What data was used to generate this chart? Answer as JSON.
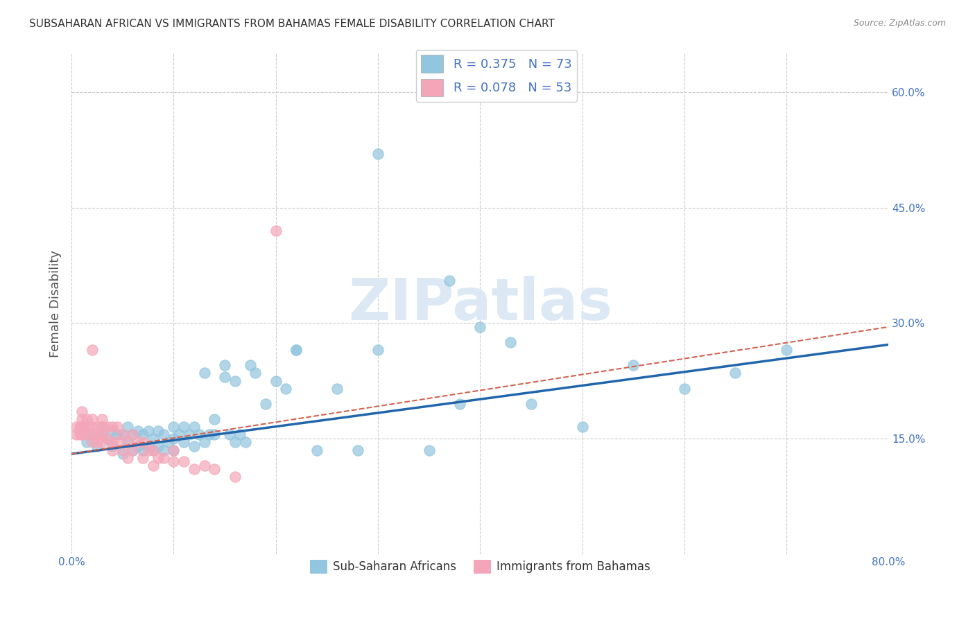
{
  "title": "SUBSAHARAN AFRICAN VS IMMIGRANTS FROM BAHAMAS FEMALE DISABILITY CORRELATION CHART",
  "source": "Source: ZipAtlas.com",
  "ylabel": "Female Disability",
  "xlim": [
    0.0,
    0.8
  ],
  "ylim": [
    0.0,
    0.65
  ],
  "ytick_positions": [
    0.15,
    0.3,
    0.45,
    0.6
  ],
  "ytick_labels": [
    "15.0%",
    "30.0%",
    "45.0%",
    "60.0%"
  ],
  "legend1_label": "R = 0.375   N = 73",
  "legend2_label": "R = 0.078   N = 53",
  "legend_label1": "Sub-Saharan Africans",
  "legend_label2": "Immigrants from Bahamas",
  "blue_color": "#92c5de",
  "pink_color": "#f4a6b8",
  "blue_line_color": "#2166ac",
  "pink_line_color": "#d6604d",
  "blue_scatter_x": [
    0.015,
    0.02,
    0.025,
    0.03,
    0.03,
    0.035,
    0.04,
    0.04,
    0.045,
    0.05,
    0.05,
    0.055,
    0.055,
    0.06,
    0.06,
    0.065,
    0.065,
    0.07,
    0.07,
    0.075,
    0.075,
    0.08,
    0.08,
    0.085,
    0.085,
    0.09,
    0.09,
    0.095,
    0.1,
    0.1,
    0.1,
    0.105,
    0.11,
    0.11,
    0.115,
    0.12,
    0.12,
    0.125,
    0.13,
    0.13,
    0.135,
    0.14,
    0.14,
    0.15,
    0.15,
    0.155,
    0.16,
    0.16,
    0.165,
    0.17,
    0.175,
    0.18,
    0.19,
    0.2,
    0.21,
    0.22,
    0.24,
    0.26,
    0.28,
    0.22,
    0.3,
    0.35,
    0.38,
    0.4,
    0.43,
    0.45,
    0.5,
    0.55,
    0.6,
    0.65,
    0.7,
    0.3,
    0.37
  ],
  "blue_scatter_y": [
    0.145,
    0.155,
    0.14,
    0.155,
    0.165,
    0.15,
    0.14,
    0.16,
    0.155,
    0.13,
    0.155,
    0.145,
    0.165,
    0.135,
    0.155,
    0.14,
    0.16,
    0.135,
    0.155,
    0.14,
    0.16,
    0.135,
    0.15,
    0.14,
    0.16,
    0.135,
    0.155,
    0.145,
    0.135,
    0.15,
    0.165,
    0.155,
    0.145,
    0.165,
    0.155,
    0.14,
    0.165,
    0.155,
    0.145,
    0.235,
    0.155,
    0.155,
    0.175,
    0.23,
    0.245,
    0.155,
    0.145,
    0.225,
    0.155,
    0.145,
    0.245,
    0.235,
    0.195,
    0.225,
    0.215,
    0.265,
    0.135,
    0.215,
    0.135,
    0.265,
    0.265,
    0.135,
    0.195,
    0.295,
    0.275,
    0.195,
    0.165,
    0.245,
    0.215,
    0.235,
    0.265,
    0.52,
    0.355
  ],
  "pink_scatter_x": [
    0.005,
    0.005,
    0.008,
    0.008,
    0.01,
    0.01,
    0.01,
    0.01,
    0.012,
    0.015,
    0.015,
    0.015,
    0.02,
    0.02,
    0.02,
    0.02,
    0.02,
    0.025,
    0.025,
    0.025,
    0.03,
    0.03,
    0.03,
    0.03,
    0.035,
    0.035,
    0.04,
    0.04,
    0.04,
    0.045,
    0.045,
    0.05,
    0.05,
    0.055,
    0.055,
    0.06,
    0.06,
    0.065,
    0.07,
    0.07,
    0.075,
    0.08,
    0.08,
    0.085,
    0.09,
    0.1,
    0.1,
    0.11,
    0.12,
    0.13,
    0.14,
    0.16,
    0.2
  ],
  "pink_scatter_y": [
    0.155,
    0.165,
    0.155,
    0.165,
    0.155,
    0.165,
    0.175,
    0.185,
    0.165,
    0.155,
    0.165,
    0.175,
    0.145,
    0.155,
    0.165,
    0.175,
    0.265,
    0.145,
    0.155,
    0.165,
    0.145,
    0.155,
    0.165,
    0.175,
    0.15,
    0.165,
    0.135,
    0.145,
    0.165,
    0.145,
    0.165,
    0.135,
    0.155,
    0.125,
    0.145,
    0.135,
    0.155,
    0.145,
    0.125,
    0.145,
    0.135,
    0.115,
    0.135,
    0.125,
    0.125,
    0.12,
    0.135,
    0.12,
    0.11,
    0.115,
    0.11,
    0.1,
    0.42
  ],
  "blue_line_x": [
    0.0,
    0.8
  ],
  "blue_line_y_start": 0.13,
  "blue_line_y_end": 0.272,
  "pink_line_x": [
    0.0,
    0.8
  ],
  "pink_line_y_start": 0.13,
  "pink_line_y_end": 0.295,
  "background_color": "#ffffff",
  "grid_color": "#cccccc",
  "title_color": "#333333",
  "axis_label_color": "#555555",
  "tick_color": "#4472c4",
  "watermark_text": "ZIPatlas",
  "watermark_color": "#dce9f5",
  "watermark_fontsize": 60
}
